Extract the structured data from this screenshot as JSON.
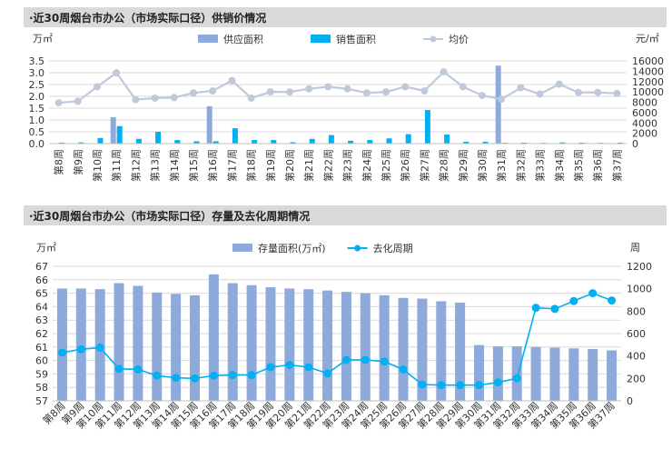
{
  "chart_data": [
    {
      "type": "bar+line",
      "title": "·近30周烟台市办公（市场实际口径）供销价情况",
      "left_unit": "万㎡",
      "right_unit": "元/㎡",
      "left_ylim": [
        0,
        3.5
      ],
      "left_ticks": [
        "0.0",
        "0.5",
        "1.0",
        "1.5",
        "2.0",
        "2.5",
        "3.0",
        "3.5"
      ],
      "right_ylim": [
        0,
        16000
      ],
      "right_ticks": [
        "0",
        "2000",
        "4000",
        "6000",
        "8000",
        "10000",
        "12000",
        "14000",
        "16000"
      ],
      "categories": [
        "第8周",
        "第9周",
        "第10周",
        "第11周",
        "第12周",
        "第13周",
        "第14周",
        "第15周",
        "第16周",
        "第17周",
        "第18周",
        "第19周",
        "第20周",
        "第21周",
        "第22周",
        "第23周",
        "第24周",
        "第25周",
        "第26周",
        "第27周",
        "第28周",
        "第29周",
        "第30周",
        "第31周",
        "第32周",
        "第33周",
        "第34周",
        "第35周",
        "第36周",
        "第37周"
      ],
      "series": [
        {
          "name": "供应面积",
          "kind": "bar",
          "color": "#8eaadb",
          "values": [
            0,
            0,
            0,
            1.12,
            0,
            0,
            0,
            0,
            1.58,
            0,
            0,
            0,
            0,
            0,
            0,
            0,
            0,
            0,
            0,
            0,
            0,
            0,
            0,
            3.3,
            0,
            0,
            0,
            0,
            0,
            0
          ]
        },
        {
          "name": "销售面积",
          "kind": "bar",
          "color": "#00b0f0",
          "values": [
            0.04,
            0.05,
            0.24,
            0.74,
            0.2,
            0.5,
            0.15,
            0.1,
            0.1,
            0.65,
            0.15,
            0.15,
            0.06,
            0.2,
            0.36,
            0.12,
            0.15,
            0.22,
            0.4,
            1.42,
            0.38,
            0.08,
            0.08,
            0.03,
            0.04,
            0.03,
            0.05,
            0.04,
            0.03,
            0.04
          ]
        },
        {
          "name": "均价",
          "kind": "line",
          "axis": "right",
          "color": "#bfc9d9",
          "values": [
            7900,
            8200,
            11000,
            13700,
            8500,
            8800,
            8900,
            9800,
            10200,
            12200,
            8800,
            10000,
            10000,
            10600,
            11000,
            10600,
            9800,
            10000,
            11000,
            10200,
            13900,
            11000,
            9300,
            8600,
            10800,
            9600,
            11500,
            9900,
            9900,
            9700
          ]
        }
      ]
    },
    {
      "type": "bar+line",
      "title": "·近30周烟台市办公（市场实际口径）存量及去化周期情况",
      "left_unit": "万㎡",
      "right_unit": "周",
      "left_ylim": [
        57,
        67
      ],
      "left_ticks": [
        "57",
        "58",
        "59",
        "60",
        "61",
        "62",
        "63",
        "64",
        "65",
        "66",
        "67"
      ],
      "right_ylim": [
        0,
        1200
      ],
      "right_ticks": [
        "0",
        "200",
        "400",
        "600",
        "800",
        "1000",
        "1200"
      ],
      "categories": [
        "第8周",
        "第9周",
        "第10周",
        "第11周",
        "第12周",
        "第13周",
        "第14周",
        "第15周",
        "第16周",
        "第17周",
        "第18周",
        "第19周",
        "第20周",
        "第21周",
        "第22周",
        "第23周",
        "第24周",
        "第25周",
        "第26周",
        "第27周",
        "第28周",
        "第29周",
        "第30周",
        "第31周",
        "第32周",
        "第33周",
        "第34周",
        "第35周",
        "第36周",
        "第37周"
      ],
      "series": [
        {
          "name": "存量面积(万㎡)",
          "kind": "bar",
          "color": "#8eaadb",
          "values": [
            65.35,
            65.35,
            65.3,
            65.75,
            65.55,
            65.05,
            64.95,
            64.85,
            66.4,
            65.75,
            65.6,
            65.45,
            65.35,
            65.3,
            65.2,
            65.1,
            65.0,
            64.85,
            64.65,
            64.6,
            64.4,
            64.3,
            61.15,
            61.05,
            61.05,
            61.0,
            60.95,
            60.9,
            60.85,
            60.75
          ]
        },
        {
          "name": "去化周期",
          "kind": "line",
          "axis": "right",
          "color": "#00b0f0",
          "values": [
            430,
            460,
            475,
            285,
            280,
            225,
            205,
            200,
            225,
            230,
            230,
            300,
            320,
            300,
            245,
            365,
            365,
            350,
            280,
            145,
            140,
            140,
            140,
            165,
            200,
            830,
            820,
            890,
            960,
            895
          ]
        }
      ]
    }
  ]
}
